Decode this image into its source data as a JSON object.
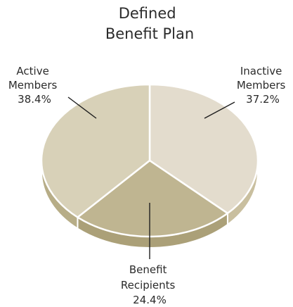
{
  "chart_data": {
    "type": "pie",
    "title_lines": [
      "Defined",
      "Benefit Plan"
    ],
    "slices": [
      {
        "name_lines": [
          "Inactive",
          "Members"
        ],
        "value": 37.2,
        "value_label": "37.2%",
        "color": "#e3dccd",
        "side_color": "#c9bf9f"
      },
      {
        "name_lines": [
          "Benefit",
          "Recipients"
        ],
        "value": 24.4,
        "value_label": "24.4%",
        "color": "#bfb591",
        "side_color": "#aba078"
      },
      {
        "name_lines": [
          "Active",
          "Members"
        ],
        "value": 38.4,
        "value_label": "38.4%",
        "color": "#d8d1b8",
        "side_color": "#b7ad87"
      }
    ],
    "start_angle_deg": -90,
    "direction": "clockwise",
    "style_3d": true,
    "legend": "none"
  }
}
